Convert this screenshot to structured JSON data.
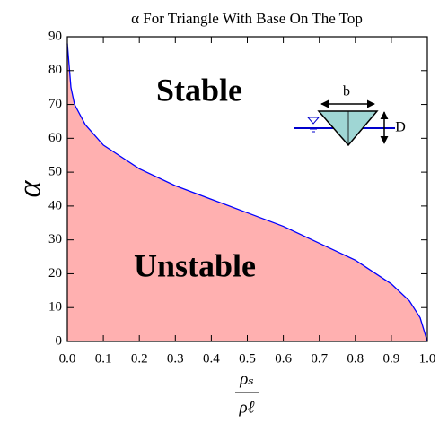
{
  "chart_data": {
    "type": "area",
    "title": "α For Triangle With Base On The Top",
    "y_label": "α",
    "x_label_numerator": "ρₛ",
    "x_label_denominator": "ρℓ",
    "x": [
      0,
      0.01,
      0.02,
      0.05,
      0.1,
      0.2,
      0.3,
      0.4,
      0.5,
      0.6,
      0.7,
      0.8,
      0.9,
      0.95,
      0.98,
      1.0
    ],
    "series": [
      {
        "values": [
          88,
          75,
          70,
          64,
          58,
          51,
          46,
          42,
          38,
          34,
          29,
          24,
          17,
          12,
          7,
          0
        ],
        "color": "#0000ff",
        "fill": "#ffb0b0"
      }
    ],
    "xlim": [
      0,
      1
    ],
    "ylim": [
      0,
      90
    ],
    "xticks": [
      {
        "value": 0,
        "label": "0.0"
      },
      0.1,
      0.2,
      0.3,
      0.4,
      0.5,
      0.6,
      0.7,
      0.8,
      0.9,
      {
        "value": 1,
        "label": "1.0"
      }
    ],
    "yticks": [
      0,
      10,
      20,
      30,
      40,
      50,
      60,
      70,
      80,
      90
    ],
    "grid": false,
    "annotations": [
      {
        "text": "Stable",
        "color": "#118811"
      },
      {
        "text": "Unstable",
        "color": "#ff1111"
      }
    ],
    "inset_labels": {
      "width": "b",
      "depth": "D"
    }
  }
}
